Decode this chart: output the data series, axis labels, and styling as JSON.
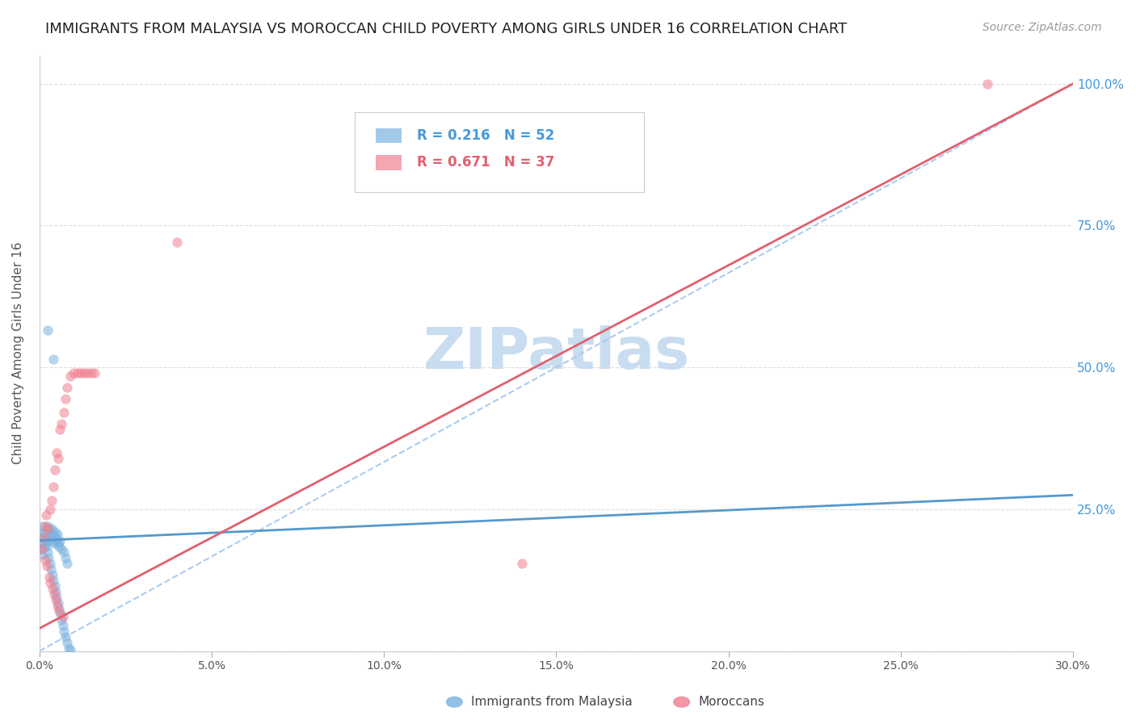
{
  "title": "IMMIGRANTS FROM MALAYSIA VS MOROCCAN CHILD POVERTY AMONG GIRLS UNDER 16 CORRELATION CHART",
  "source": "Source: ZipAtlas.com",
  "ylabel_label": "Child Poverty Among Girls Under 16",
  "xlim": [
    0.0,
    0.3
  ],
  "ylim": [
    0.0,
    1.05
  ],
  "watermark": "ZIPatlas",
  "blue_label": "Immigrants from Malaysia",
  "pink_label": "Moroccans",
  "blue_R": "0.216",
  "blue_N": "52",
  "pink_R": "0.671",
  "pink_N": "37",
  "blue_color": "#7ab3e0",
  "pink_color": "#f08090",
  "blue_line_color": "#5599cc",
  "pink_line_color": "#e06070",
  "dashed_color": "#aaccee",
  "right_axis_color": "#4499dd",
  "grid_color": "#dddddd",
  "scatter_alpha": 0.55,
  "scatter_size": 80,
  "title_fontsize": 13,
  "source_fontsize": 10,
  "watermark_color": "#c8ddf0",
  "watermark_fontsize": 52,
  "blue_line_x": [
    0.0,
    0.3
  ],
  "blue_line_y": [
    0.195,
    0.275
  ],
  "pink_line_x": [
    0.0,
    0.3
  ],
  "pink_line_y": [
    0.04,
    1.0
  ],
  "dashed_line_x": [
    0.0,
    0.3
  ],
  "dashed_line_y": [
    0.0,
    1.0
  ],
  "blue_scatter_x": [
    0.0008,
    0.0012,
    0.0015,
    0.0018,
    0.002,
    0.0022,
    0.0025,
    0.0028,
    0.003,
    0.0033,
    0.0035,
    0.0038,
    0.004,
    0.0042,
    0.0045,
    0.0048,
    0.005,
    0.0052,
    0.0055,
    0.0058,
    0.006,
    0.0065,
    0.007,
    0.0075,
    0.008,
    0.0005,
    0.0007,
    0.001,
    0.0013,
    0.0016,
    0.0019,
    0.0023,
    0.0026,
    0.003,
    0.0034,
    0.0037,
    0.0041,
    0.0044,
    0.0047,
    0.0051,
    0.0054,
    0.0057,
    0.0061,
    0.0064,
    0.0068,
    0.0072,
    0.0076,
    0.008,
    0.0085,
    0.009,
    0.0025,
    0.004
  ],
  "blue_scatter_y": [
    0.2,
    0.19,
    0.185,
    0.21,
    0.2,
    0.195,
    0.22,
    0.215,
    0.21,
    0.2,
    0.215,
    0.205,
    0.195,
    0.19,
    0.21,
    0.2,
    0.195,
    0.205,
    0.19,
    0.185,
    0.195,
    0.18,
    0.175,
    0.165,
    0.155,
    0.18,
    0.17,
    0.22,
    0.21,
    0.195,
    0.185,
    0.175,
    0.165,
    0.155,
    0.145,
    0.135,
    0.125,
    0.115,
    0.105,
    0.095,
    0.085,
    0.075,
    0.065,
    0.055,
    0.045,
    0.035,
    0.025,
    0.015,
    0.005,
    0.002,
    0.565,
    0.515
  ],
  "pink_scatter_x": [
    0.0008,
    0.0012,
    0.0016,
    0.002,
    0.0025,
    0.003,
    0.0035,
    0.004,
    0.0045,
    0.005,
    0.0055,
    0.006,
    0.0065,
    0.007,
    0.0075,
    0.008,
    0.009,
    0.01,
    0.011,
    0.012,
    0.013,
    0.014,
    0.015,
    0.016,
    0.0018,
    0.0022,
    0.0028,
    0.0032,
    0.0038,
    0.0042,
    0.0048,
    0.0053,
    0.0058,
    0.0068,
    0.14,
    0.275,
    0.04
  ],
  "pink_scatter_y": [
    0.18,
    0.2,
    0.22,
    0.24,
    0.215,
    0.25,
    0.265,
    0.29,
    0.32,
    0.35,
    0.34,
    0.39,
    0.4,
    0.42,
    0.445,
    0.465,
    0.485,
    0.49,
    0.49,
    0.49,
    0.49,
    0.49,
    0.49,
    0.49,
    0.16,
    0.15,
    0.13,
    0.12,
    0.11,
    0.1,
    0.09,
    0.08,
    0.07,
    0.06,
    0.155,
    1.0,
    0.72
  ]
}
